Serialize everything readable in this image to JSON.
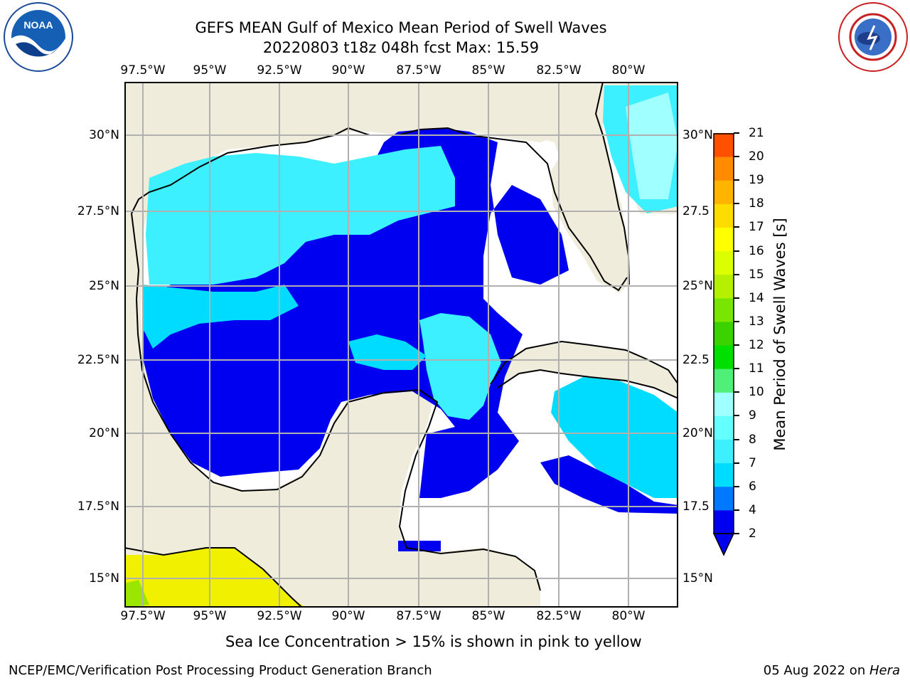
{
  "title": {
    "line1": "GEFS MEAN Gulf of Mexico Mean Period of Swell Waves",
    "line2": "20220803 t18z 048h fcst   Max: 15.59"
  },
  "map": {
    "lon_labels": [
      "97.5°W",
      "95°W",
      "92.5°W",
      "90°W",
      "87.5°W",
      "85°W",
      "82.5°W",
      "80°W"
    ],
    "lat_labels_left": [
      "30°N",
      "27.5°N",
      "25°N",
      "22.5°N",
      "20°N",
      "17.5°N",
      "15°N"
    ],
    "lat_labels_right": [
      "30°N",
      "27.5",
      "25°N",
      "22.5",
      "20°N",
      "17.5",
      "15°N"
    ],
    "land_color": "#efecdc",
    "ocean_missing_color": "#ffffff"
  },
  "colorbar": {
    "label": "Mean Period of Swell Waves [s]",
    "ticks": [
      "2",
      "4",
      "6",
      "7",
      "8",
      "9",
      "10",
      "11",
      "12",
      "13",
      "14",
      "15",
      "16",
      "17",
      "18",
      "19",
      "20",
      "21"
    ],
    "colors": [
      "#0000f0",
      "#0078ff",
      "#00dcff",
      "#3cf0ff",
      "#64ffff",
      "#a0ffff",
      "#50f078",
      "#00e000",
      "#3cd200",
      "#78e600",
      "#b4f000",
      "#dcff00",
      "#ffff00",
      "#ffdc00",
      "#ffb400",
      "#ff8c00",
      "#ff5000",
      "#ff1e00",
      "#ff0000"
    ],
    "under_color": "#0000f0"
  },
  "note": "Sea Ice Concentration > 15% is shown in pink to yellow",
  "footer": {
    "left": "NCEP/EMC/Verification Post Processing Product Generation Branch",
    "date": "05 Aug 2022 on ",
    "machine": "Hera"
  }
}
